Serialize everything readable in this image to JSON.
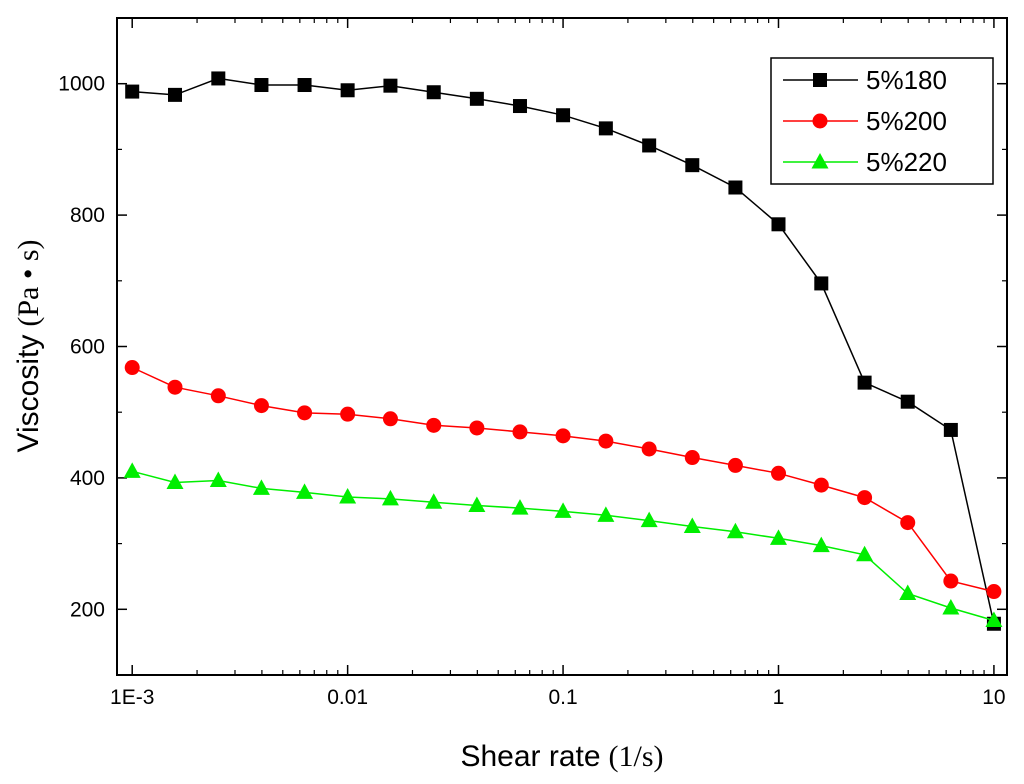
{
  "chart_data": {
    "type": "line",
    "title": "",
    "xlabel": "Shear rate",
    "xlabel_unit": "(1/s)",
    "ylabel": "Viscosity",
    "ylabel_unit": "(Pa • s)",
    "xscale": "log",
    "xlim": [
      0.00085,
      11.5
    ],
    "ylim": [
      100,
      1100
    ],
    "xticks": [
      {
        "value": 0.001,
        "label": "1E-3"
      },
      {
        "value": 0.01,
        "label": "0.01"
      },
      {
        "value": 0.1,
        "label": "0.1"
      },
      {
        "value": 1,
        "label": "1"
      },
      {
        "value": 10,
        "label": "10"
      }
    ],
    "yticks": [
      {
        "value": 200,
        "label": "200"
      },
      {
        "value": 400,
        "label": "400"
      },
      {
        "value": 600,
        "label": "600"
      },
      {
        "value": 800,
        "label": "800"
      },
      {
        "value": 1000,
        "label": "1000"
      }
    ],
    "grid": false,
    "legend_position": "top-right",
    "x": [
      0.001,
      0.00158,
      0.00251,
      0.00398,
      0.00631,
      0.01,
      0.0158,
      0.0251,
      0.0398,
      0.0631,
      0.1,
      0.158,
      0.251,
      0.398,
      0.631,
      1,
      1.58,
      2.51,
      3.98,
      6.31,
      10
    ],
    "series": [
      {
        "name": "5%180",
        "color": "#000000",
        "marker": "square",
        "values": [
          988,
          983,
          1008,
          998,
          998,
          990,
          997,
          987,
          977,
          966,
          952,
          932,
          906,
          876,
          842,
          786,
          696,
          545,
          516,
          473,
          178
        ]
      },
      {
        "name": "5%200",
        "color": "#ff0000",
        "marker": "circle",
        "values": [
          568,
          538,
          525,
          510,
          499,
          497,
          490,
          480,
          476,
          470,
          464,
          456,
          444,
          431,
          419,
          407,
          389,
          370,
          332,
          243,
          227
        ]
      },
      {
        "name": "5%220",
        "color": "#00ee00",
        "marker": "triangle",
        "values": [
          410,
          393,
          396,
          384,
          378,
          371,
          368,
          363,
          358,
          354,
          349,
          343,
          335,
          326,
          318,
          308,
          297,
          283,
          224,
          202,
          183
        ]
      }
    ]
  }
}
